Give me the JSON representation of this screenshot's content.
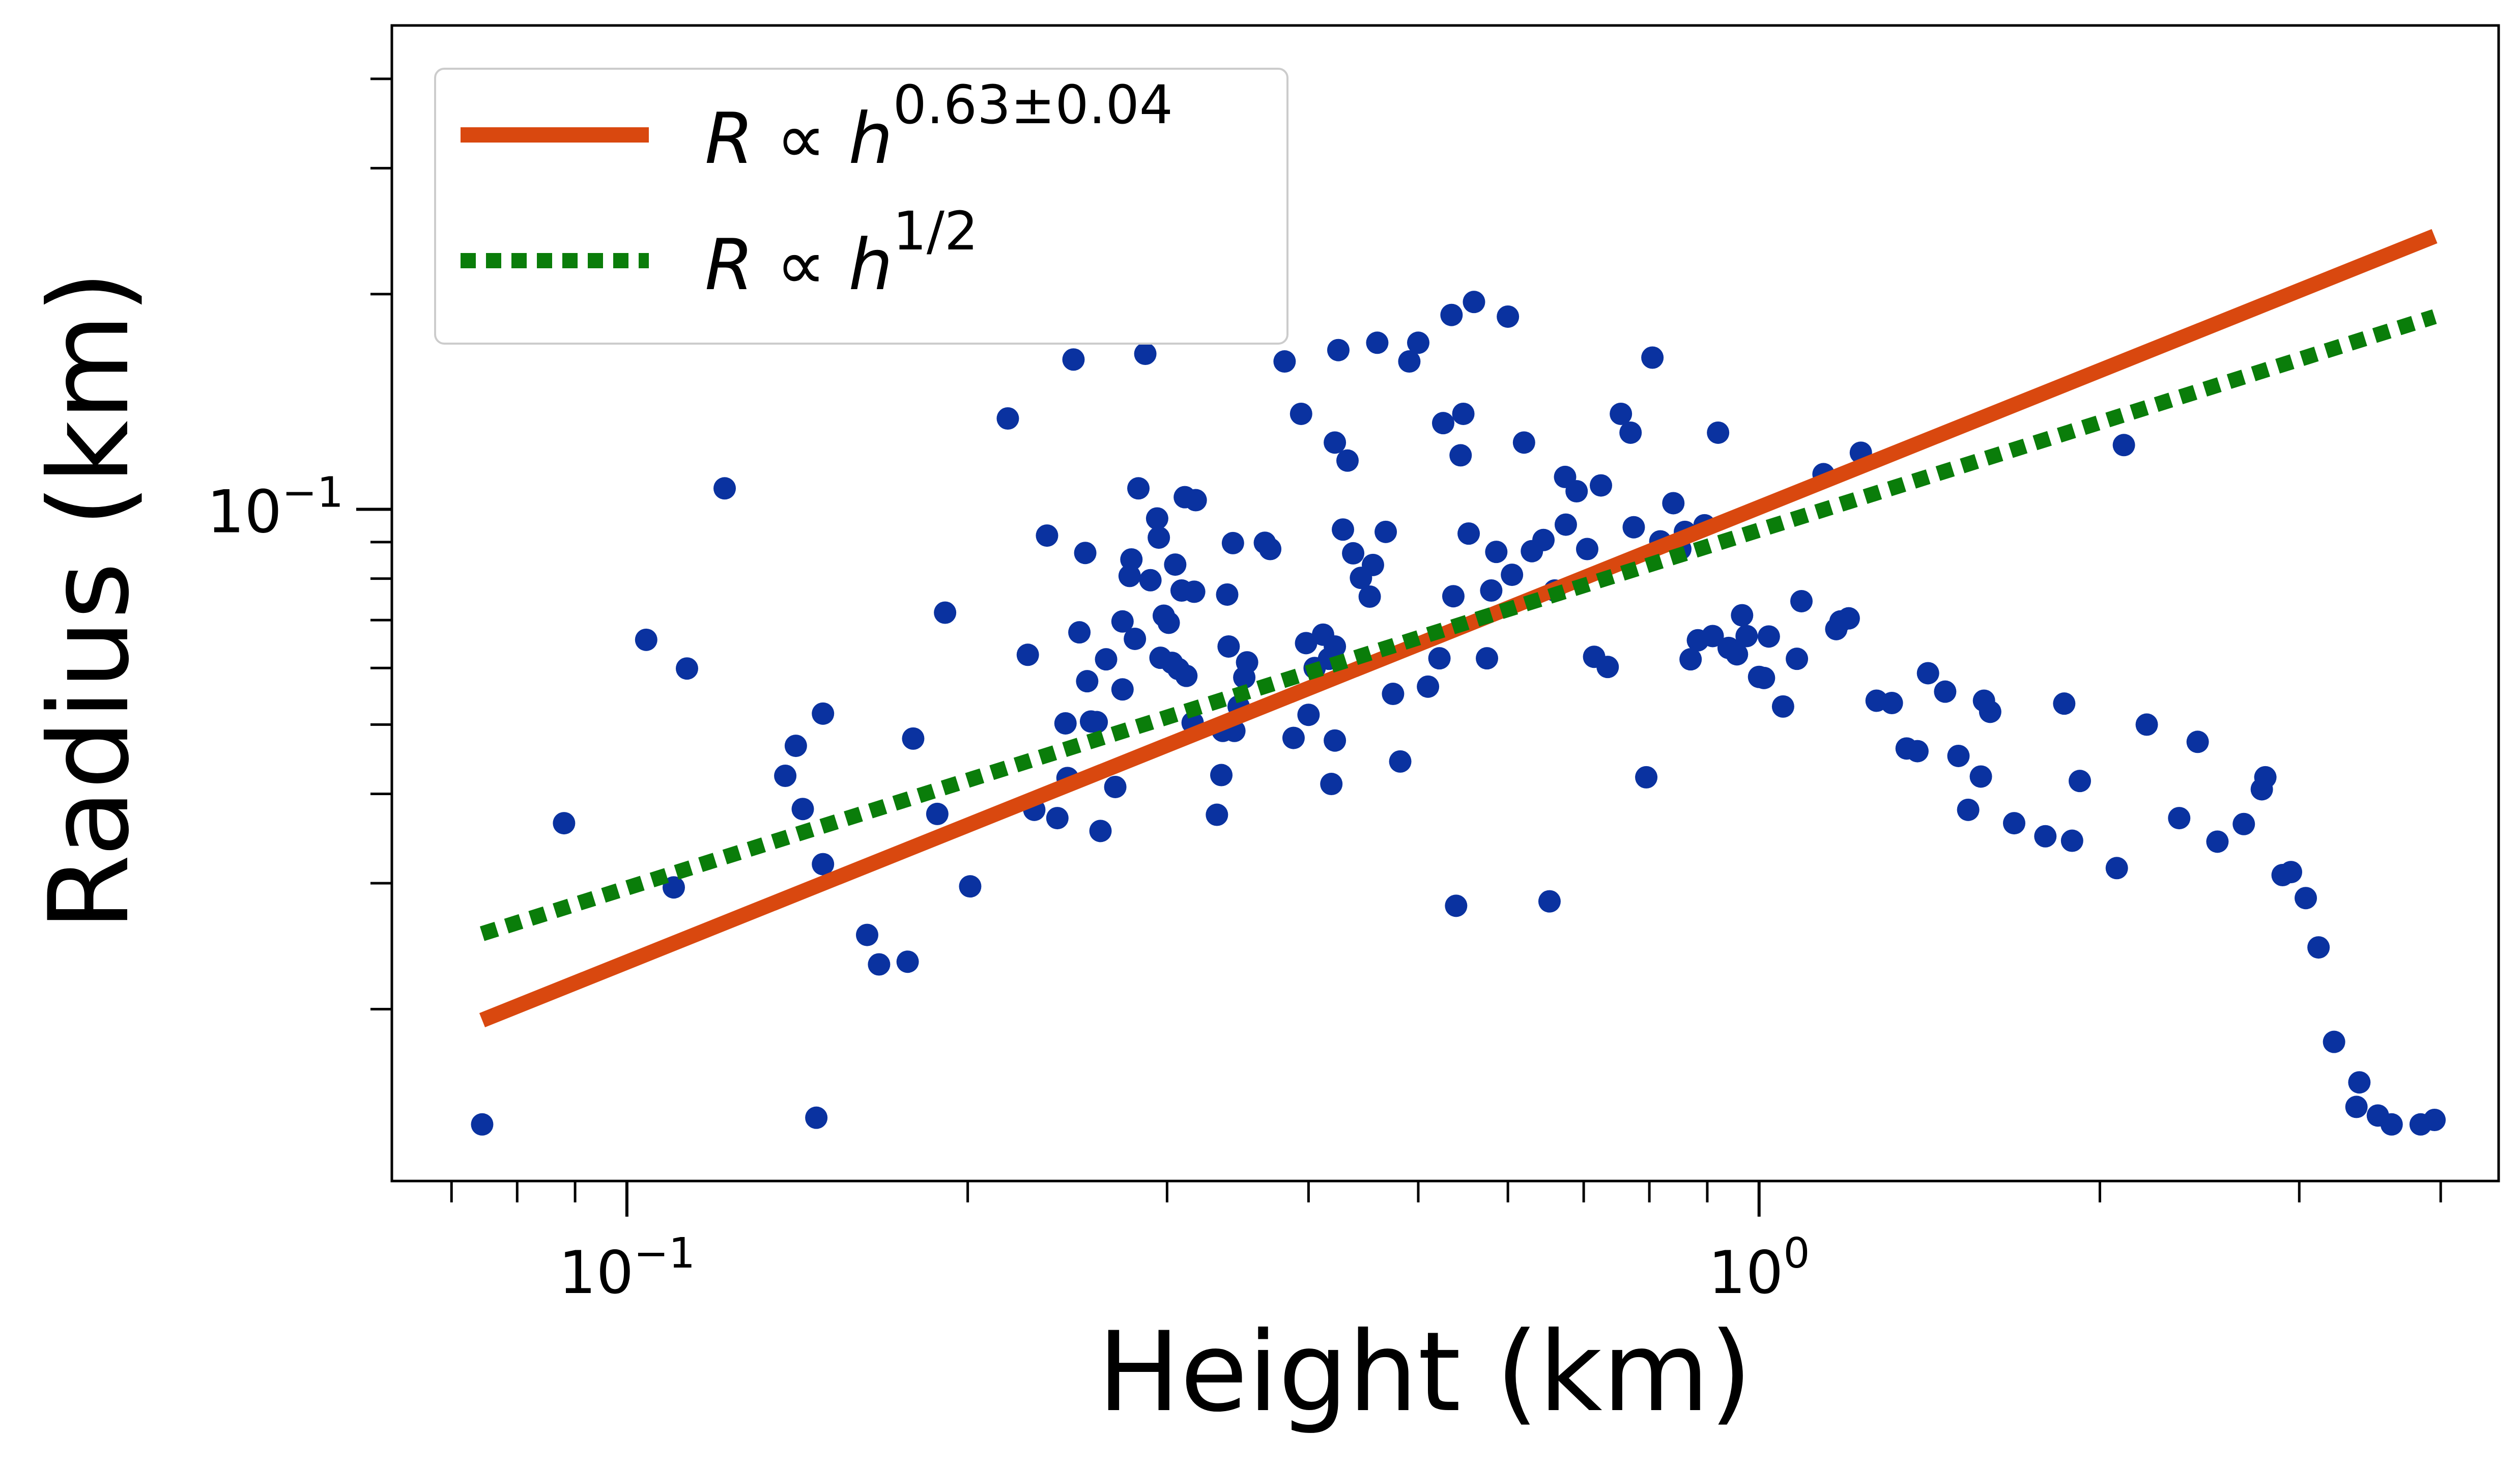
{
  "chart_data": {
    "type": "scatter",
    "title": "",
    "xlabel": "Height (km)",
    "ylabel": "Radius (km)",
    "xscale": "log",
    "yscale": "log",
    "xlim": [
      0.062,
      4.5
    ],
    "ylim": [
      0.0115,
      0.475
    ],
    "grid": false,
    "legend_position": "top-left",
    "xticks": [
      {
        "value": 0.1,
        "base": "10",
        "exp": "−1"
      },
      {
        "value": 1,
        "base": "10",
        "exp": "0"
      }
    ],
    "yticks": [
      {
        "value": 0.1,
        "base": "10",
        "exp": "−1"
      }
    ],
    "x_minor_ticks": [
      0.07,
      0.08,
      0.09,
      0.2,
      0.3,
      0.4,
      0.5,
      0.6,
      0.7,
      0.8,
      0.9,
      2,
      3,
      4
    ],
    "y_minor_ticks": [
      0.02,
      0.03,
      0.04,
      0.05,
      0.06,
      0.07,
      0.08,
      0.09,
      0.2,
      0.3,
      0.4
    ],
    "series": [
      {
        "name": "data",
        "kind": "scatter",
        "color": "#0a32a0",
        "points": [
          [
            0.0745,
            0.0138
          ],
          [
            0.088,
            0.0364
          ],
          [
            0.104,
            0.0657
          ],
          [
            0.11,
            0.0296
          ],
          [
            0.113,
            0.0599
          ],
          [
            0.122,
            0.107
          ],
          [
            0.138,
            0.0424
          ],
          [
            0.141,
            0.0467
          ],
          [
            0.143,
            0.0381
          ],
          [
            0.147,
            0.0141
          ],
          [
            0.149,
            0.0518
          ],
          [
            0.149,
            0.0319
          ],
          [
            0.163,
            0.0254
          ],
          [
            0.167,
            0.0231
          ],
          [
            0.177,
            0.0233
          ],
          [
            0.179,
            0.0478
          ],
          [
            0.188,
            0.0375
          ],
          [
            0.191,
            0.0717
          ],
          [
            0.201,
            0.0297
          ],
          [
            0.217,
            0.134
          ],
          [
            0.226,
            0.0626
          ],
          [
            0.229,
            0.038
          ],
          [
            0.235,
            0.0919
          ],
          [
            0.24,
            0.037
          ],
          [
            0.244,
            0.0502
          ],
          [
            0.245,
            0.0421
          ],
          [
            0.248,
            0.162
          ],
          [
            0.251,
            0.0673
          ],
          [
            0.254,
            0.0869
          ],
          [
            0.255,
            0.0575
          ],
          [
            0.257,
            0.0505
          ],
          [
            0.26,
            0.0504
          ],
          [
            0.262,
            0.0355
          ],
          [
            0.265,
            0.0617
          ],
          [
            0.27,
            0.0409
          ],
          [
            0.274,
            0.0697
          ],
          [
            0.274,
            0.056
          ],
          [
            0.278,
            0.0807
          ],
          [
            0.279,
            0.0851
          ],
          [
            0.281,
            0.0659
          ],
          [
            0.283,
            0.107
          ],
          [
            0.287,
            0.165
          ],
          [
            0.29,
            0.0796
          ],
          [
            0.294,
            0.0971
          ],
          [
            0.295,
            0.0913
          ],
          [
            0.296,
            0.062
          ],
          [
            0.298,
            0.071
          ],
          [
            0.301,
            0.0694
          ],
          [
            0.303,
            0.061
          ],
          [
            0.305,
            0.0837
          ],
          [
            0.307,
            0.0598
          ],
          [
            0.309,
            0.077
          ],
          [
            0.311,
            0.104
          ],
          [
            0.312,
            0.0585
          ],
          [
            0.316,
            0.0503
          ],
          [
            0.317,
            0.0767
          ],
          [
            0.318,
            0.103
          ],
          [
            0.332,
            0.0374
          ],
          [
            0.335,
            0.0425
          ],
          [
            0.336,
            0.049
          ],
          [
            0.339,
            0.076
          ],
          [
            0.34,
            0.0643
          ],
          [
            0.343,
            0.0897
          ],
          [
            0.344,
            0.049
          ],
          [
            0.347,
            0.053
          ],
          [
            0.351,
            0.0582
          ],
          [
            0.353,
            0.0611
          ],
          [
            0.366,
            0.0898
          ],
          [
            0.37,
            0.088
          ],
          [
            0.381,
            0.161
          ],
          [
            0.388,
            0.0479
          ],
          [
            0.394,
            0.136
          ],
          [
            0.398,
            0.065
          ],
          [
            0.4,
            0.0516
          ],
          [
            0.405,
            0.06
          ],
          [
            0.412,
            0.0668
          ],
          [
            0.417,
            0.0618
          ],
          [
            0.419,
            0.0413
          ],
          [
            0.422,
            0.0643
          ],
          [
            0.422,
            0.0475
          ],
          [
            0.422,
            0.124
          ],
          [
            0.425,
            0.167
          ],
          [
            0.429,
            0.0937
          ],
          [
            0.433,
            0.117
          ],
          [
            0.438,
            0.0868
          ],
          [
            0.445,
            0.0802
          ],
          [
            0.453,
            0.0755
          ],
          [
            0.456,
            0.0836
          ],
          [
            0.46,
            0.171
          ],
          [
            0.468,
            0.093
          ],
          [
            0.475,
            0.0552
          ],
          [
            0.482,
            0.0444
          ],
          [
            0.491,
            0.161
          ],
          [
            0.5,
            0.171
          ],
          [
            0.51,
            0.0565
          ],
          [
            0.522,
            0.0619
          ],
          [
            0.526,
            0.132
          ],
          [
            0.535,
            0.187
          ],
          [
            0.537,
            0.0756
          ],
          [
            0.54,
            0.0279
          ],
          [
            0.545,
            0.119
          ],
          [
            0.548,
            0.136
          ],
          [
            0.554,
            0.0925
          ],
          [
            0.56,
            0.195
          ],
          [
            0.575,
            0.0619
          ],
          [
            0.58,
            0.077
          ],
          [
            0.586,
            0.0872
          ],
          [
            0.6,
            0.186
          ],
          [
            0.605,
            0.081
          ],
          [
            0.62,
            0.124
          ],
          [
            0.63,
            0.0874
          ],
          [
            0.645,
            0.0906
          ],
          [
            0.653,
            0.0283
          ],
          [
            0.66,
            0.077
          ],
          [
            0.674,
            0.111
          ],
          [
            0.675,
            0.0952
          ],
          [
            0.69,
            0.106
          ],
          [
            0.705,
            0.088
          ],
          [
            0.715,
            0.0622
          ],
          [
            0.725,
            0.108
          ],
          [
            0.735,
            0.0602
          ],
          [
            0.755,
            0.136
          ],
          [
            0.77,
            0.128
          ],
          [
            0.775,
            0.0944
          ],
          [
            0.795,
            0.0422
          ],
          [
            0.805,
            0.163
          ],
          [
            0.818,
            0.0902
          ],
          [
            0.84,
            0.102
          ],
          [
            0.852,
            0.088
          ],
          [
            0.86,
            0.093
          ],
          [
            0.87,
            0.0617
          ],
          [
            0.883,
            0.0656
          ],
          [
            0.895,
            0.095
          ],
          [
            0.91,
            0.0665
          ],
          [
            0.92,
            0.128
          ],
          [
            0.94,
            0.064
          ],
          [
            0.956,
            0.0627
          ],
          [
            0.966,
            0.0711
          ],
          [
            0.975,
            0.0665
          ],
          [
            1.0,
            0.0583
          ],
          [
            1.01,
            0.0581
          ],
          [
            1.02,
            0.0664
          ],
          [
            1.05,
            0.053
          ],
          [
            1.08,
            0.0618
          ],
          [
            1.09,
            0.0744
          ],
          [
            1.14,
            0.112
          ],
          [
            1.17,
            0.068
          ],
          [
            1.18,
            0.0697
          ],
          [
            1.2,
            0.0704
          ],
          [
            1.23,
            0.12
          ],
          [
            1.27,
            0.054
          ],
          [
            1.31,
            0.0536
          ],
          [
            1.35,
            0.0463
          ],
          [
            1.38,
            0.0459
          ],
          [
            1.41,
            0.059
          ],
          [
            1.46,
            0.0556
          ],
          [
            1.5,
            0.0452
          ],
          [
            1.53,
            0.038
          ],
          [
            1.57,
            0.0423
          ],
          [
            1.58,
            0.054
          ],
          [
            1.6,
            0.0521
          ],
          [
            1.68,
            0.0364
          ],
          [
            1.79,
            0.0349
          ],
          [
            1.86,
            0.0535
          ],
          [
            1.89,
            0.0344
          ],
          [
            1.92,
            0.0417
          ],
          [
            2.07,
            0.0315
          ],
          [
            2.1,
            0.123
          ],
          [
            2.2,
            0.05
          ],
          [
            2.35,
            0.037
          ],
          [
            2.44,
            0.0473
          ],
          [
            2.54,
            0.0343
          ],
          [
            2.68,
            0.0363
          ],
          [
            2.78,
            0.0406
          ],
          [
            2.8,
            0.0422
          ],
          [
            2.9,
            0.0308
          ],
          [
            2.95,
            0.0311
          ],
          [
            3.04,
            0.0286
          ],
          [
            3.12,
            0.0244
          ],
          [
            3.22,
            0.018
          ],
          [
            3.37,
            0.0146
          ],
          [
            3.39,
            0.0158
          ],
          [
            3.52,
            0.0142
          ],
          [
            3.62,
            0.0138
          ],
          [
            3.84,
            0.0138
          ],
          [
            3.95,
            0.014
          ]
        ]
      },
      {
        "name": "R ∝ h^(0.63±0.04)",
        "kind": "line",
        "style": "solid",
        "color": "#d9480f",
        "x": [
          0.0745,
          3.95
        ],
        "y": [
          0.0193,
          0.241
        ]
      },
      {
        "name": "R ∝ h^(1/2)",
        "kind": "line",
        "style": "dotted",
        "color": "#0a7d0a",
        "x": [
          0.0745,
          3.95
        ],
        "y": [
          0.0255,
          0.186
        ]
      }
    ],
    "legend": [
      {
        "prefix": "R ∝ h",
        "sup": "0.63±0.04",
        "color": "#d9480f",
        "style": "solid"
      },
      {
        "prefix": "R ∝ h",
        "sup": "1/2",
        "color": "#0a7d0a",
        "style": "dotted"
      }
    ]
  }
}
